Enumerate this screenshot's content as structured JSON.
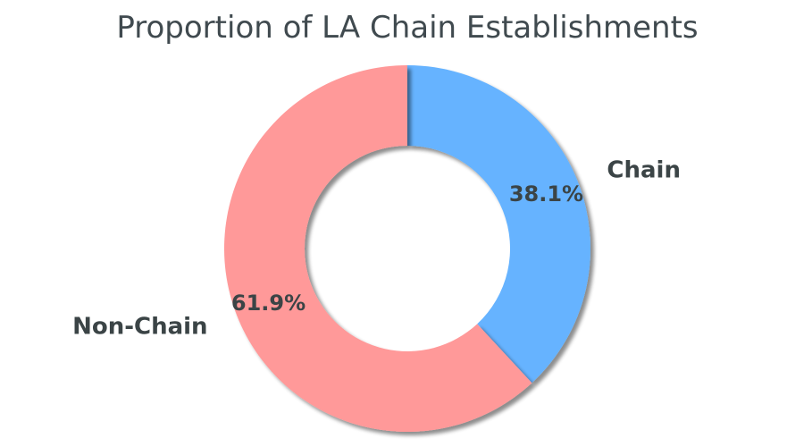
{
  "chart_data": {
    "type": "pie",
    "title": "Proportion of LA Chain Establishments",
    "donut": true,
    "shadow": true,
    "start_angle_deg": 90,
    "direction": "clockwise",
    "slices": [
      {
        "label": "Chain",
        "value": 38.1,
        "percent_label": "38.1%",
        "color": "#66b3ff"
      },
      {
        "label": "Non-Chain",
        "value": 61.9,
        "percent_label": "61.9%",
        "color": "#ff9999"
      }
    ]
  }
}
